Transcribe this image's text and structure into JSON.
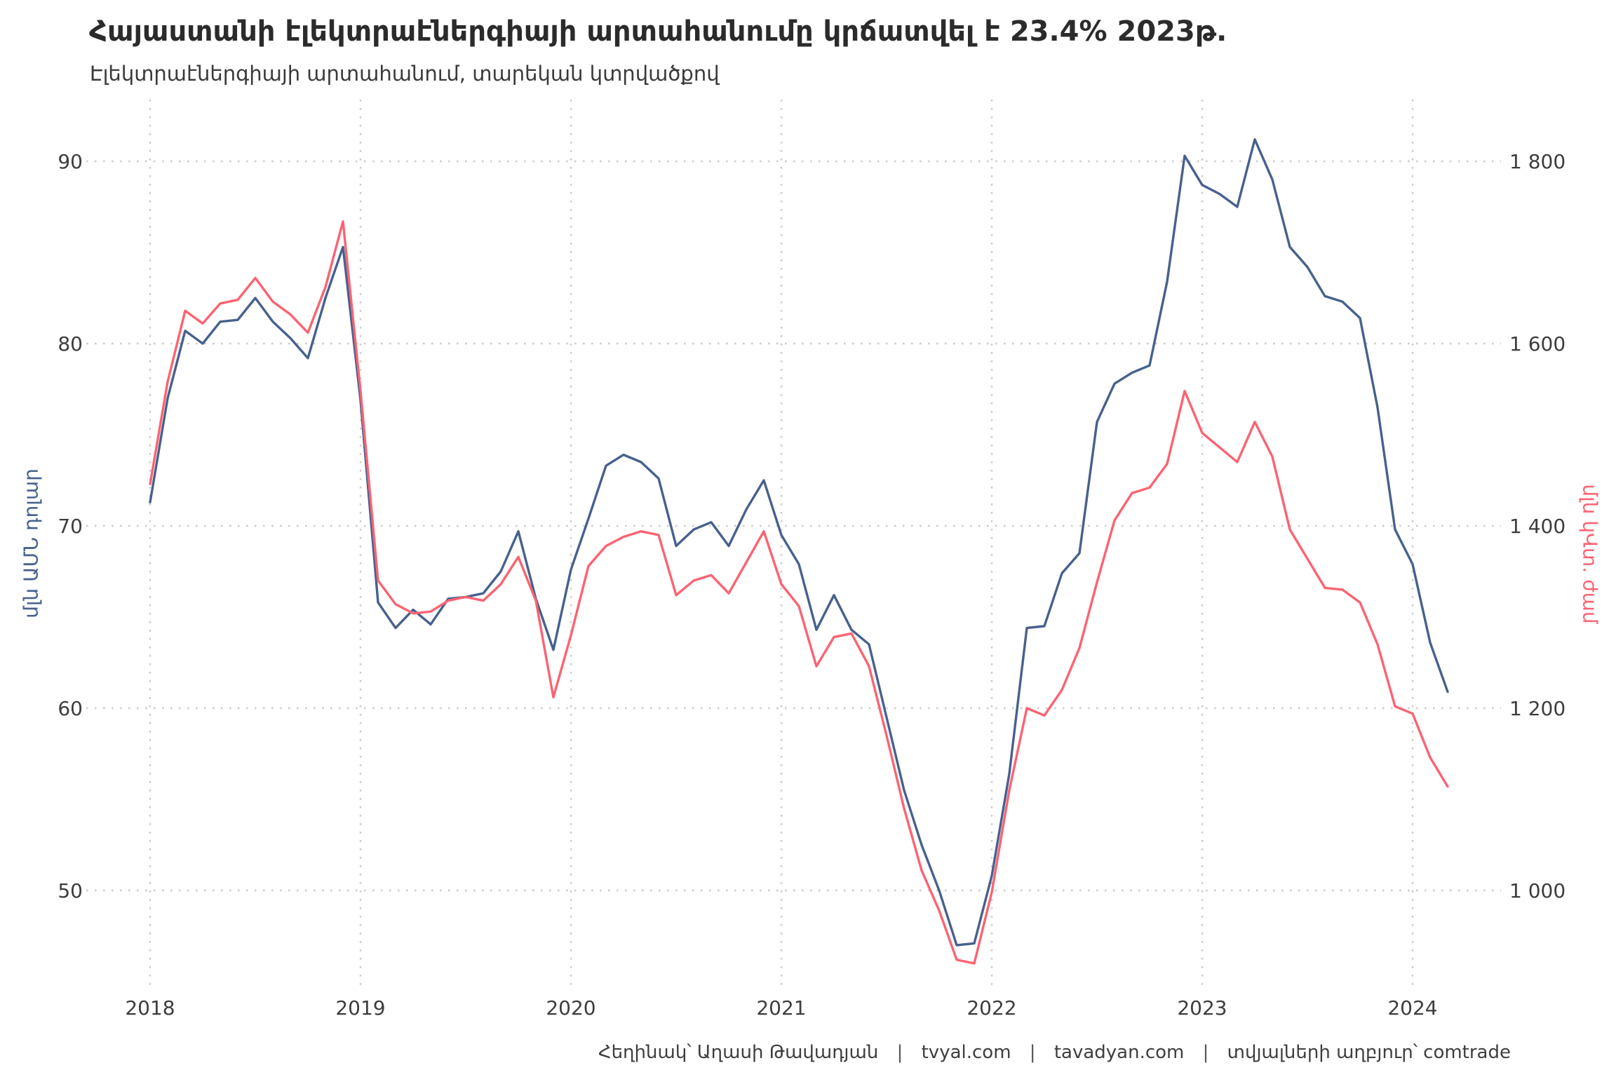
{
  "title": "Հայաստանի էլեկտրաէներգիայի արտահանումը կրճատվել է 23.4% 2023թ.",
  "subtitle": "Էլեկտրաէներգիայի արտահանում, տարեկան կտրվածքով",
  "footer": {
    "author": "Հեղինակ՝ Աղասի Թավադյան",
    "site1": "tvyal.com",
    "site2": "tavadyan.com",
    "source": "տվյալների աղբյուր՝ comtrade",
    "separator": "|"
  },
  "colors": {
    "exports_line": "#46618e",
    "volume_line": "#fb6372",
    "grid": "#cbcbcb",
    "tick_text": "#3d3d3d",
    "title_text": "#2b2b2b"
  },
  "chart_data": {
    "type": "line",
    "title": "Հայաստանի էլեկտրաէներգիայի արտահանումը կրճատվել է 23.4% 2023թ.",
    "subtitle": "Էլեկտրաէներգիայի արտահանում, տարեկան կտրվածքով",
    "x_start": "2018-01",
    "x_interval": "month",
    "x_tick_labels": [
      "2018",
      "2019",
      "2020",
      "2021",
      "2022",
      "2023",
      "2024"
    ],
    "grid": true,
    "legend": false,
    "left_axis": {
      "label": "մլն ԱՄՆ դոլար",
      "ticks": [
        90,
        80,
        70,
        60,
        50
      ],
      "range": [
        46,
        92
      ]
    },
    "right_axis": {
      "label": "մլն կՎտ. ժամ",
      "tick_labels": [
        "1 800",
        "1 600",
        "1 400",
        "1 200",
        "1 000"
      ],
      "ticks": [
        1800,
        1600,
        1400,
        1200,
        1000
      ],
      "range": [
        920,
        1840
      ]
    },
    "series": [
      {
        "name": "exports-mln-usd",
        "axis": "left",
        "color": "#46618e",
        "values": [
          71.3,
          77.0,
          80.7,
          80.0,
          81.2,
          81.3,
          82.5,
          81.2,
          80.3,
          79.2,
          82.5,
          85.3,
          76.9,
          65.8,
          64.4,
          65.4,
          64.6,
          66.0,
          66.1,
          66.3,
          67.5,
          69.7,
          66.0,
          63.2,
          67.6,
          70.4,
          73.3,
          73.9,
          73.5,
          72.6,
          68.9,
          69.8,
          70.2,
          68.9,
          70.9,
          72.5,
          69.5,
          67.9,
          64.3,
          66.2,
          64.3,
          63.5,
          59.5,
          55.5,
          52.5,
          50.0,
          47.0,
          47.1,
          50.8,
          56.4,
          64.4,
          64.5,
          67.4,
          68.5,
          75.7,
          77.8,
          78.4,
          78.8,
          83.4,
          90.3,
          88.7,
          88.2,
          87.5,
          91.2,
          89.0,
          85.3,
          84.2,
          82.6,
          82.3,
          81.4,
          76.5,
          69.8,
          67.9,
          63.6,
          60.9
        ]
      },
      {
        "name": "volume-mln-kwh",
        "axis": "right",
        "color": "#fb6372",
        "values": [
          1446,
          1558,
          1636,
          1622,
          1644,
          1648,
          1672,
          1646,
          1632,
          1612,
          1662,
          1734,
          1548,
          1340,
          1314,
          1304,
          1306,
          1318,
          1322,
          1318,
          1336,
          1366,
          1318,
          1212,
          1280,
          1356,
          1378,
          1388,
          1394,
          1390,
          1324,
          1340,
          1346,
          1326,
          1360,
          1394,
          1336,
          1312,
          1246,
          1278,
          1282,
          1246,
          1170,
          1090,
          1022,
          978,
          924,
          920,
          998,
          1110,
          1200,
          1192,
          1220,
          1266,
          1338,
          1406,
          1436,
          1442,
          1468,
          1548,
          1502,
          1486,
          1470,
          1514,
          1476,
          1396,
          1364,
          1332,
          1330,
          1316,
          1270,
          1202,
          1194,
          1146,
          1114
        ]
      }
    ]
  }
}
